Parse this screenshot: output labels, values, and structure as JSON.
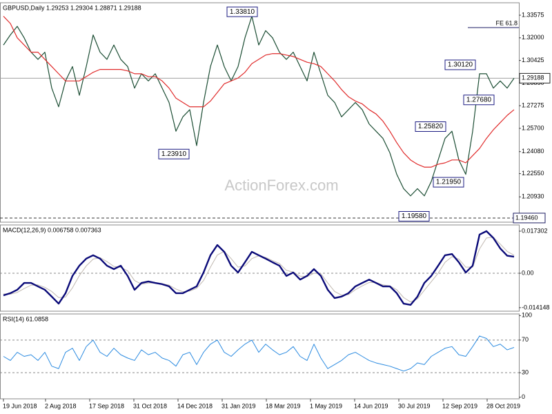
{
  "chart_data": [
    {
      "type": "line",
      "title": "GBPUSD,Daily  1.29253 1.29304 1.28871 1.29188",
      "watermark": "ActionForex.com",
      "ylim": [
        1.1917,
        1.3444
      ],
      "yticks": [
        1.33575,
        {
          "value": 1.32,
          "label": "1.32000"
        },
        1.30425,
        {
          "value": 1.2885,
          "label": "1.28850"
        },
        1.27275,
        {
          "value": 1.257,
          "label": "1.25700"
        },
        {
          "value": 1.2408,
          "label": "1.24080"
        },
        {
          "value": 1.2255,
          "label": "1.22550"
        },
        {
          "value": 1.2093,
          "label": "1.20930"
        }
      ],
      "series": [
        {
          "color": "#1b4d33",
          "width": 1.2,
          "values": [
            1.315,
            1.322,
            1.328,
            1.32,
            1.31,
            1.305,
            1.31,
            1.285,
            1.272,
            1.29,
            1.3,
            1.28,
            1.3,
            1.322,
            1.31,
            1.305,
            1.315,
            1.305,
            1.3,
            1.285,
            1.295,
            1.29,
            1.295,
            1.285,
            1.275,
            1.255,
            1.265,
            1.27,
            1.245,
            1.275,
            1.3,
            1.315,
            1.3,
            1.29,
            1.3,
            1.32,
            1.335,
            1.315,
            1.325,
            1.32,
            1.31,
            1.305,
            1.31,
            1.3,
            1.29,
            1.31,
            1.295,
            1.28,
            1.275,
            1.265,
            1.27,
            1.275,
            1.27,
            1.26,
            1.255,
            1.25,
            1.24,
            1.225,
            1.215,
            1.21,
            1.215,
            1.21,
            1.22,
            1.235,
            1.25,
            1.255,
            1.235,
            1.225,
            1.255,
            1.295,
            1.295,
            1.285,
            1.29,
            1.285,
            1.29188
          ]
        },
        {
          "color": "#e02b2b",
          "width": 1.2,
          "values": [
            1.335,
            1.33,
            1.32,
            1.315,
            1.31,
            1.31,
            1.305,
            1.3,
            1.295,
            1.29,
            1.29,
            1.29,
            1.293,
            1.296,
            1.298,
            1.298,
            1.298,
            1.298,
            1.297,
            1.295,
            1.295,
            1.293,
            1.293,
            1.29,
            1.285,
            1.278,
            1.275,
            1.272,
            1.272,
            1.272,
            1.276,
            1.282,
            1.288,
            1.29,
            1.292,
            1.296,
            1.302,
            1.305,
            1.308,
            1.309,
            1.309,
            1.308,
            1.307,
            1.305,
            1.303,
            1.302,
            1.3,
            1.295,
            1.29,
            1.284,
            1.279,
            1.276,
            1.274,
            1.27,
            1.267,
            1.262,
            1.255,
            1.247,
            1.24,
            1.235,
            1.232,
            1.23,
            1.23,
            1.232,
            1.233,
            1.235,
            1.235,
            1.233,
            1.238,
            1.243,
            1.25,
            1.256,
            1.261,
            1.266,
            1.27
          ]
        }
      ],
      "current": 1.29188,
      "levels": [
        {
          "value": 1.1946,
          "label": "1.19460"
        }
      ],
      "fe": {
        "label": "FE 61.8",
        "value": 1.3271,
        "x": 67.3
      },
      "annotations": [
        {
          "label": "1.33810",
          "value": 1.3381,
          "x": 34.6
        },
        {
          "label": "1.23910",
          "value": 1.2391,
          "x": 24.7
        },
        {
          "label": "1.30120",
          "value": 1.3012,
          "x": 66.2
        },
        {
          "label": "1.27680",
          "value": 1.2768,
          "x": 68.9
        },
        {
          "label": "1.25820",
          "value": 1.2582,
          "x": 61.9
        },
        {
          "label": "1.21950",
          "value": 1.2195,
          "x": 64.5
        },
        {
          "label": "1.19580",
          "value": 1.1958,
          "x": 59.5
        }
      ]
    },
    {
      "type": "line",
      "title": "MACD(12,26,9) 0.006758 0.007363",
      "ylim": [
        -0.0156,
        0.01985
      ],
      "yticks": [
        0.017302,
        {
          "value": 0,
          "label": "0.00"
        },
        -0.014148
      ],
      "dashed_levels": [
        0
      ],
      "series": [
        {
          "color": "#c0b8b0",
          "width": 1,
          "values": [
            -0.0085,
            -0.0086,
            -0.0079,
            -0.0063,
            -0.0049,
            -0.0048,
            -0.0058,
            -0.0075,
            -0.01,
            -0.0098,
            -0.006,
            -0.001,
            0.003,
            0.0058,
            0.0064,
            0.0048,
            0.0028,
            0.0024,
            0.001,
            -0.003,
            -0.0045,
            -0.004,
            -0.004,
            -0.0043,
            -0.0049,
            -0.0065,
            -0.0076,
            -0.0073,
            -0.0062,
            -0.003,
            0.0025,
            0.0075,
            0.009,
            0.006,
            0.0025,
            0.003,
            0.006,
            0.0072,
            0.0065,
            0.0052,
            0.004,
            0.0012,
            0.0005,
            -0.0012,
            -0.0014,
            0,
            -0.0002,
            -0.004,
            -0.0075,
            -0.009,
            -0.0088,
            -0.0068,
            -0.0052,
            -0.0038,
            -0.0038,
            -0.0048,
            -0.0052,
            -0.0068,
            -0.01,
            -0.0118,
            -0.0105,
            -0.007,
            -0.0035,
            0,
            0.0045,
            0.0068,
            0.0058,
            0.0025,
            0.0025,
            0.01,
            0.0145,
            0.0148,
            0.012,
            0.009,
            0.0074
          ]
        },
        {
          "color": "#0a0a78",
          "width": 2.4,
          "values": [
            -0.0091,
            -0.0082,
            -0.0068,
            -0.004,
            -0.004,
            -0.0054,
            -0.0068,
            -0.0096,
            -0.0125,
            -0.0082,
            -0.0011,
            0.0031,
            0.006,
            0.0074,
            0.006,
            0.0031,
            0.0017,
            0.0031,
            -0.0011,
            -0.0068,
            -0.004,
            -0.0034,
            -0.004,
            -0.0045,
            -0.0054,
            -0.0082,
            -0.0082,
            -0.0068,
            -0.0054,
            0.0003,
            0.0074,
            0.0116,
            0.0088,
            0.0031,
            0.0003,
            0.0045,
            0.0088,
            0.0074,
            0.006,
            0.0045,
            0.0031,
            -0.0011,
            0.0003,
            -0.0026,
            -0.0011,
            0.0017,
            -0.0011,
            -0.0068,
            -0.0102,
            -0.0096,
            -0.0082,
            -0.0054,
            -0.004,
            -0.0026,
            -0.004,
            -0.0054,
            -0.0054,
            -0.0082,
            -0.0125,
            -0.013,
            -0.0096,
            -0.004,
            -0.0011,
            0.0031,
            0.0074,
            0.0079,
            0.0045,
            0.0003,
            0.0031,
            0.0159,
            0.0173,
            0.0145,
            0.0102,
            0.0072,
            0.0068
          ]
        }
      ]
    },
    {
      "type": "line",
      "title": "RSI(14) 61.0858",
      "ylim": [
        -2,
        102
      ],
      "yticks": [
        100,
        70,
        30,
        0
      ],
      "dashed_levels": [
        70,
        30
      ],
      "series": [
        {
          "color": "#2a8ae0",
          "width": 1,
          "values": [
            50,
            45,
            55,
            50,
            52,
            45,
            55,
            38,
            35,
            55,
            60,
            45,
            62,
            70,
            55,
            50,
            60,
            52,
            48,
            45,
            58,
            52,
            55,
            48,
            45,
            38,
            52,
            55,
            40,
            55,
            65,
            70,
            55,
            50,
            58,
            65,
            70,
            55,
            65,
            58,
            52,
            55,
            62,
            50,
            45,
            65,
            48,
            35,
            40,
            45,
            52,
            55,
            50,
            45,
            42,
            40,
            38,
            35,
            32,
            35,
            42,
            40,
            50,
            55,
            60,
            62,
            52,
            50,
            62,
            75,
            72,
            62,
            65,
            58,
            61
          ]
        }
      ],
      "xticks": [
        {
          "value": 0,
          "label": "19 Jun 2018"
        },
        {
          "value": 6.1,
          "label": "2 Aug 2018"
        },
        {
          "value": 12.5,
          "label": "17 Sep 2018"
        },
        {
          "value": 18.9,
          "label": "31 Oct 2018"
        },
        {
          "value": 25.3,
          "label": "14 Dec 2018"
        },
        {
          "value": 31.7,
          "label": "31 Jan 2019"
        },
        {
          "value": 38.1,
          "label": "18 Mar 2019"
        },
        {
          "value": 44.5,
          "label": "1 May 2019"
        },
        {
          "value": 50.9,
          "label": "14 Jun 2019"
        },
        {
          "value": 57.3,
          "label": "30 Jul 2019"
        },
        {
          "value": 63.7,
          "label": "12 Sep 2019"
        },
        {
          "value": 70.1,
          "label": "28 Oct 2019"
        }
      ]
    }
  ]
}
